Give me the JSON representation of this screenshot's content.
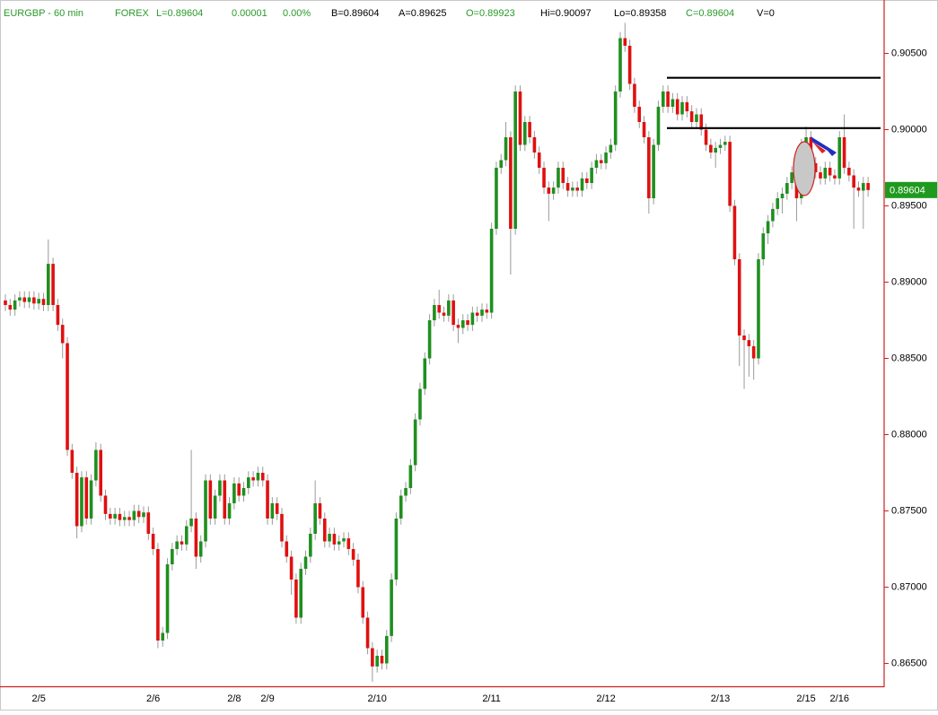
{
  "chart_data": {
    "type": "candlestick",
    "header": [
      {
        "text": "EURGBP - 60 min",
        "color": "#2a9a2a"
      },
      {
        "text": "FOREX",
        "color": "#2a9a2a"
      },
      {
        "text": "L=0.89604",
        "color": "#2a9a2a"
      },
      {
        "text": "0.00001",
        "color": "#2a9a2a"
      },
      {
        "text": "0.00%",
        "color": "#2a9a2a"
      },
      {
        "text": "B=0.89604",
        "color": "#000000"
      },
      {
        "text": "A=0.89625",
        "color": "#000000"
      },
      {
        "text": "O=0.89923",
        "color": "#2a9a2a"
      },
      {
        "text": "Hi=0.90097",
        "color": "#000000"
      },
      {
        "text": "Lo=0.89358",
        "color": "#000000"
      },
      {
        "text": "C=0.89604",
        "color": "#2a9a2a"
      },
      {
        "text": "V=0",
        "color": "#000000"
      }
    ],
    "categories": [
      null,
      null,
      null,
      null,
      null,
      null,
      null,
      "2/5",
      null,
      null,
      null,
      null,
      null,
      null,
      null,
      null,
      null,
      null,
      null,
      null,
      null,
      null,
      null,
      null,
      null,
      null,
      null,
      null,
      null,
      null,
      null,
      "2/6",
      null,
      null,
      null,
      null,
      null,
      null,
      null,
      null,
      null,
      null,
      null,
      null,
      null,
      null,
      null,
      null,
      "2/8",
      null,
      null,
      null,
      null,
      null,
      null,
      "2/9",
      null,
      null,
      null,
      null,
      null,
      null,
      null,
      null,
      null,
      null,
      null,
      null,
      null,
      null,
      null,
      null,
      null,
      null,
      null,
      null,
      null,
      null,
      "2/10",
      null,
      null,
      null,
      null,
      null,
      null,
      null,
      null,
      null,
      null,
      null,
      null,
      null,
      null,
      null,
      null,
      null,
      null,
      null,
      null,
      null,
      null,
      null,
      "2/11",
      null,
      null,
      null,
      null,
      null,
      null,
      null,
      null,
      null,
      null,
      null,
      null,
      null,
      null,
      null,
      null,
      null,
      null,
      null,
      null,
      null,
      null,
      null,
      "2/12",
      null,
      null,
      null,
      null,
      null,
      null,
      null,
      null,
      null,
      null,
      null,
      null,
      null,
      null,
      null,
      null,
      null,
      null,
      null,
      null,
      null,
      null,
      null,
      "2/13",
      null,
      null,
      null,
      null,
      null,
      null,
      null,
      null,
      null,
      null,
      null,
      null,
      null,
      null,
      null,
      null,
      null,
      "2/15",
      null,
      null,
      null,
      null,
      null,
      null,
      "2/16",
      null,
      null,
      null,
      null,
      null,
      null
    ],
    "open": [
      0.8888,
      0.8885,
      0.8882,
      0.8888,
      0.889,
      0.8887,
      0.889,
      0.8886,
      0.8889,
      0.8885,
      0.8912,
      0.8885,
      0.8872,
      0.886,
      0.879,
      0.8775,
      0.874,
      0.8772,
      0.8745,
      0.877,
      0.879,
      0.876,
      0.8748,
      0.8745,
      0.8748,
      0.8744,
      0.8746,
      0.8744,
      0.875,
      0.8746,
      0.8749,
      0.8735,
      0.8725,
      0.8665,
      0.867,
      0.8715,
      0.8725,
      0.873,
      0.8728,
      0.874,
      0.8745,
      0.872,
      0.873,
      0.877,
      0.8745,
      0.876,
      0.877,
      0.8745,
      0.8755,
      0.8768,
      0.876,
      0.8765,
      0.8772,
      0.877,
      0.8775,
      0.877,
      0.8745,
      0.8755,
      0.8748,
      0.873,
      0.872,
      0.8705,
      0.868,
      0.8712,
      0.872,
      0.8735,
      0.8755,
      0.8745,
      0.873,
      0.8735,
      0.8728,
      0.873,
      0.8732,
      0.8725,
      0.8718,
      0.87,
      0.868,
      0.866,
      0.8648,
      0.8655,
      0.865,
      0.8668,
      0.8705,
      0.8745,
      0.876,
      0.8765,
      0.878,
      0.881,
      0.883,
      0.885,
      0.8875,
      0.8885,
      0.888,
      0.8878,
      0.8888,
      0.8872,
      0.887,
      0.8875,
      0.8872,
      0.888,
      0.8878,
      0.8882,
      0.888,
      0.8935,
      0.8975,
      0.898,
      0.8995,
      0.8935,
      0.9025,
      0.899,
      0.9005,
      0.8995,
      0.8985,
      0.8975,
      0.8962,
      0.8958,
      0.8962,
      0.8975,
      0.8965,
      0.896,
      0.8962,
      0.896,
      0.8968,
      0.8965,
      0.8975,
      0.898,
      0.8978,
      0.8985,
      0.899,
      0.9025,
      0.906,
      0.9055,
      0.903,
      0.9015,
      0.9005,
      0.8995,
      0.8955,
      0.899,
      0.9015,
      0.9025,
      0.9015,
      0.902,
      0.901,
      0.9018,
      0.9012,
      0.9005,
      0.901,
      0.9,
      0.899,
      0.8985,
      0.8988,
      0.899,
      0.8992,
      0.895,
      0.8915,
      0.8865,
      0.8862,
      0.8858,
      0.885,
      0.8915,
      0.8932,
      0.894,
      0.8948,
      0.8955,
      0.8958,
      0.8965,
      0.8972,
      0.8955,
      0.899,
      0.8995,
      0.8978,
      0.8972,
      0.8968,
      0.8975,
      0.897,
      0.8968,
      0.8995,
      0.8975,
      0.897,
      0.8962,
      0.896,
      0.8965
    ],
    "high": [
      0.8892,
      0.8889,
      0.8892,
      0.8894,
      0.8894,
      0.8894,
      0.8894,
      0.8893,
      0.8893,
      0.8928,
      0.8916,
      0.8889,
      0.8876,
      0.8864,
      0.8794,
      0.8779,
      0.8776,
      0.8776,
      0.8774,
      0.8795,
      0.8794,
      0.8764,
      0.8752,
      0.8752,
      0.8752,
      0.875,
      0.875,
      0.8754,
      0.8754,
      0.8753,
      0.8753,
      0.8739,
      0.8729,
      0.8674,
      0.8719,
      0.8729,
      0.8734,
      0.8734,
      0.8744,
      0.879,
      0.8749,
      0.8734,
      0.8774,
      0.8774,
      0.8764,
      0.8774,
      0.8774,
      0.8759,
      0.8772,
      0.8772,
      0.8769,
      0.8776,
      0.8776,
      0.8779,
      0.8779,
      0.8774,
      0.8759,
      0.8759,
      0.8752,
      0.8734,
      0.8724,
      0.8709,
      0.8716,
      0.8724,
      0.8739,
      0.877,
      0.8759,
      0.8749,
      0.8739,
      0.8739,
      0.8734,
      0.8736,
      0.8736,
      0.8729,
      0.8722,
      0.8704,
      0.8684,
      0.8664,
      0.8659,
      0.8659,
      0.8672,
      0.8709,
      0.8749,
      0.8764,
      0.8769,
      0.8784,
      0.8814,
      0.8834,
      0.8854,
      0.8879,
      0.8889,
      0.8895,
      0.8884,
      0.8892,
      0.8892,
      0.8876,
      0.8879,
      0.8879,
      0.8884,
      0.8884,
      0.8886,
      0.8886,
      0.8939,
      0.8979,
      0.8984,
      0.9005,
      0.8999,
      0.9029,
      0.9029,
      0.9009,
      0.9009,
      0.8999,
      0.8989,
      0.8979,
      0.8966,
      0.8966,
      0.8979,
      0.8979,
      0.8969,
      0.8966,
      0.8966,
      0.8972,
      0.8972,
      0.8979,
      0.8984,
      0.8984,
      0.8989,
      0.8994,
      0.9029,
      0.9064,
      0.907,
      0.9059,
      0.9034,
      0.9019,
      0.9009,
      0.8999,
      0.8994,
      0.9019,
      0.9029,
      0.9029,
      0.9024,
      0.9024,
      0.9022,
      0.9022,
      0.9016,
      0.9014,
      0.9014,
      0.9004,
      0.8994,
      0.8992,
      0.8994,
      0.8996,
      0.8996,
      0.8954,
      0.8919,
      0.8869,
      0.8866,
      0.8862,
      0.8919,
      0.8936,
      0.8944,
      0.8952,
      0.8959,
      0.8962,
      0.8969,
      0.8976,
      0.8976,
      0.8994,
      0.9002,
      0.8999,
      0.8982,
      0.8976,
      0.8979,
      0.8979,
      0.8974,
      0.8999,
      0.901,
      0.8979,
      0.8974,
      0.8966,
      0.8969,
      0.8969
    ],
    "low": [
      0.8881,
      0.8878,
      0.8878,
      0.8884,
      0.8883,
      0.8883,
      0.8882,
      0.8882,
      0.8881,
      0.8881,
      0.8881,
      0.8868,
      0.885,
      0.8786,
      0.8771,
      0.8732,
      0.8736,
      0.8741,
      0.8741,
      0.8766,
      0.8756,
      0.8744,
      0.8741,
      0.8741,
      0.874,
      0.874,
      0.874,
      0.874,
      0.8742,
      0.8742,
      0.8731,
      0.8721,
      0.866,
      0.8661,
      0.8666,
      0.8711,
      0.8721,
      0.8724,
      0.8724,
      0.8736,
      0.8712,
      0.8716,
      0.8726,
      0.8741,
      0.8741,
      0.8756,
      0.8741,
      0.8741,
      0.8751,
      0.8756,
      0.8756,
      0.8761,
      0.8766,
      0.8766,
      0.8766,
      0.8741,
      0.8741,
      0.8744,
      0.8726,
      0.8716,
      0.8695,
      0.8676,
      0.8676,
      0.8708,
      0.8716,
      0.8731,
      0.8741,
      0.8726,
      0.8726,
      0.8724,
      0.8724,
      0.8726,
      0.8721,
      0.8714,
      0.8696,
      0.8676,
      0.8656,
      0.8638,
      0.8644,
      0.8646,
      0.8646,
      0.8664,
      0.8701,
      0.8741,
      0.8756,
      0.8761,
      0.8776,
      0.8806,
      0.8826,
      0.8846,
      0.8871,
      0.8876,
      0.8874,
      0.8874,
      0.8868,
      0.886,
      0.8866,
      0.8868,
      0.8868,
      0.8874,
      0.8874,
      0.8876,
      0.8876,
      0.8931,
      0.8971,
      0.8976,
      0.8905,
      0.8931,
      0.8986,
      0.8986,
      0.8991,
      0.8981,
      0.8971,
      0.8958,
      0.894,
      0.8954,
      0.8958,
      0.8961,
      0.8956,
      0.8956,
      0.8956,
      0.8956,
      0.8961,
      0.8961,
      0.8971,
      0.8974,
      0.8974,
      0.8981,
      0.8986,
      0.9021,
      0.9051,
      0.9026,
      0.9011,
      0.9001,
      0.8991,
      0.8945,
      0.8951,
      0.8986,
      0.9011,
      0.9011,
      0.9011,
      0.9006,
      0.9006,
      0.9008,
      0.9001,
      0.9001,
      0.8996,
      0.8986,
      0.8981,
      0.8975,
      0.8984,
      0.8986,
      0.8946,
      0.8911,
      0.8845,
      0.883,
      0.8838,
      0.8836,
      0.8846,
      0.8911,
      0.8925,
      0.8936,
      0.8944,
      0.8945,
      0.8954,
      0.8961,
      0.894,
      0.8951,
      0.8986,
      0.8974,
      0.8968,
      0.8964,
      0.8964,
      0.8966,
      0.8964,
      0.8964,
      0.8971,
      0.8966,
      0.8935,
      0.8956,
      0.8935,
      0.8956
    ],
    "close": [
      0.8885,
      0.8882,
      0.8888,
      0.889,
      0.8887,
      0.889,
      0.8886,
      0.8889,
      0.8885,
      0.8912,
      0.8885,
      0.8872,
      0.886,
      0.879,
      0.8775,
      0.874,
      0.8772,
      0.8745,
      0.877,
      0.879,
      0.876,
      0.8748,
      0.8745,
      0.8748,
      0.8744,
      0.8746,
      0.8744,
      0.875,
      0.8746,
      0.8749,
      0.8735,
      0.8725,
      0.8665,
      0.867,
      0.8715,
      0.8725,
      0.873,
      0.8728,
      0.874,
      0.8745,
      0.872,
      0.873,
      0.877,
      0.8745,
      0.876,
      0.877,
      0.8745,
      0.8755,
      0.8768,
      0.876,
      0.8765,
      0.8772,
      0.877,
      0.8775,
      0.877,
      0.8745,
      0.8755,
      0.8748,
      0.873,
      0.872,
      0.8705,
      0.868,
      0.8712,
      0.872,
      0.8735,
      0.8755,
      0.8745,
      0.873,
      0.8735,
      0.8728,
      0.873,
      0.8732,
      0.8725,
      0.8718,
      0.87,
      0.868,
      0.866,
      0.8648,
      0.8655,
      0.865,
      0.8668,
      0.8705,
      0.8745,
      0.876,
      0.8765,
      0.878,
      0.881,
      0.883,
      0.885,
      0.8875,
      0.8885,
      0.888,
      0.8878,
      0.8888,
      0.8872,
      0.887,
      0.8875,
      0.8872,
      0.888,
      0.8878,
      0.8882,
      0.888,
      0.8935,
      0.8975,
      0.898,
      0.8995,
      0.8935,
      0.9025,
      0.899,
      0.9005,
      0.8995,
      0.8985,
      0.8975,
      0.8962,
      0.8958,
      0.8962,
      0.8975,
      0.8965,
      0.896,
      0.8962,
      0.896,
      0.8968,
      0.8965,
      0.8975,
      0.898,
      0.8978,
      0.8985,
      0.899,
      0.9025,
      0.906,
      0.9055,
      0.903,
      0.9015,
      0.9005,
      0.8995,
      0.8955,
      0.899,
      0.9015,
      0.9025,
      0.9015,
      0.902,
      0.901,
      0.9018,
      0.9012,
      0.9005,
      0.901,
      0.9,
      0.899,
      0.8985,
      0.8988,
      0.899,
      0.8992,
      0.895,
      0.8915,
      0.8865,
      0.8862,
      0.8858,
      0.885,
      0.8915,
      0.8932,
      0.894,
      0.8948,
      0.8955,
      0.8958,
      0.8965,
      0.8972,
      0.8955,
      0.899,
      0.8995,
      0.8978,
      0.8972,
      0.8968,
      0.8975,
      0.897,
      0.8968,
      0.8995,
      0.8975,
      0.897,
      0.8962,
      0.896,
      0.8965,
      0.89604
    ],
    "up_color": "#1f8f1f",
    "down_color": "#e01010",
    "wick_color": "#9a9a9a",
    "ylim": [
      0.8635,
      0.9085
    ],
    "yticks": [
      {
        "value": 0.865,
        "label": "0.86500"
      },
      {
        "value": 0.87,
        "label": "0.87000"
      },
      {
        "value": 0.875,
        "label": "0.87500"
      },
      {
        "value": 0.88,
        "label": "0.88000"
      },
      {
        "value": 0.885,
        "label": "0.88500"
      },
      {
        "value": 0.89,
        "label": "0.89000"
      },
      {
        "value": 0.895,
        "label": "0.89500"
      },
      {
        "value": 0.9,
        "label": "0.90000"
      },
      {
        "value": 0.905,
        "label": "0.90500"
      }
    ],
    "levels": [
      0.9034,
      0.9001
    ],
    "last_price_color": "#1f9a1f"
  }
}
